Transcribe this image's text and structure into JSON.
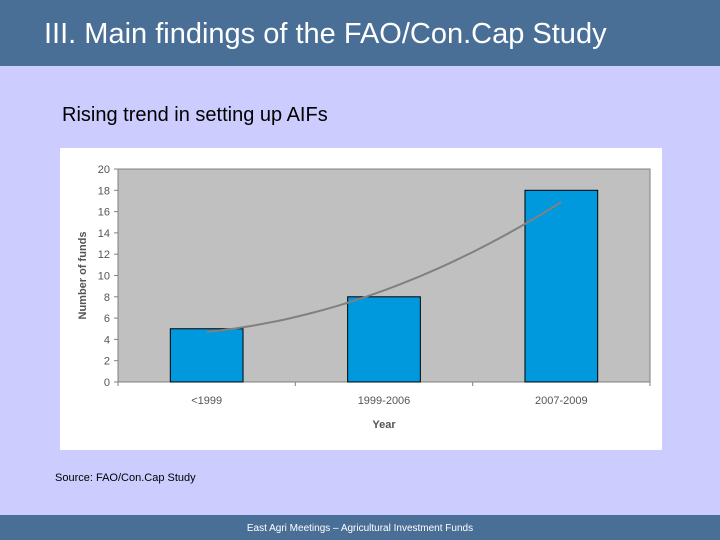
{
  "slide": {
    "title": "III. Main findings of the FAO/Con.Cap Study",
    "subtitle": "Rising trend in setting up AIFs",
    "source": "Source: FAO/Con.Cap Study",
    "footer": "East Agri Meetings – Agricultural Investment Funds"
  },
  "colors": {
    "header": "#4a6f96",
    "background": "#ccccff",
    "plot_area": "#c0c0c0",
    "bar": "#0099dd",
    "trendline": "#808080"
  },
  "chart_data": {
    "type": "bar",
    "categories": [
      "<1999",
      "1999-2006",
      "2007-2009"
    ],
    "values": [
      5,
      8,
      18
    ],
    "xlabel": "Year",
    "ylabel": "Number of funds",
    "ylim": [
      0,
      20
    ],
    "yticks": [
      0,
      2,
      4,
      6,
      8,
      10,
      12,
      14,
      16,
      18,
      20
    ],
    "grid": false,
    "legend": "none",
    "trendline": {
      "type": "exponential",
      "x": [
        "<1999",
        "1999-2006",
        "2007-2009"
      ],
      "y": [
        4.7,
        8.6,
        16.9
      ]
    }
  }
}
